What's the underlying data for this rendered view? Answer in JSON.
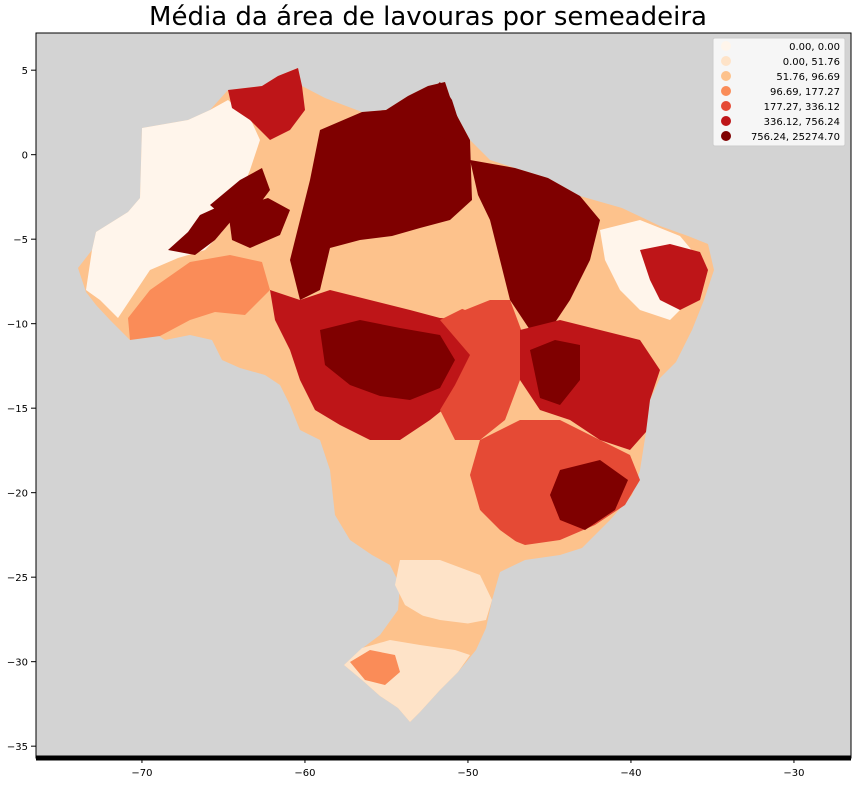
{
  "title": "Média da área de lavouras por semeadeira",
  "colors": {
    "ocean": "#d3d3d3",
    "bins": [
      "#fff5eb",
      "#fee3c8",
      "#fdc28c",
      "#fa8c58",
      "#e54a35",
      "#be1518",
      "#7f0000"
    ]
  },
  "chart_data": {
    "type": "choropleth",
    "x_ticks": [
      -70,
      -60,
      -50,
      -40,
      -30
    ],
    "y_ticks": [
      5,
      0,
      -5,
      -10,
      -15,
      -20,
      -25,
      -30,
      -35
    ],
    "xlim": [
      -76.5,
      -26.5
    ],
    "ylim": [
      -35.7,
      7.2
    ],
    "legend": {
      "placement": "upper right",
      "entries": [
        "0.00,     0.00",
        "0.00,    51.76",
        "51.76,    96.69",
        "96.69,   177.27",
        "177.27,   336.12",
        "336.12,   756.24",
        "756.24, 25274.70"
      ]
    }
  }
}
